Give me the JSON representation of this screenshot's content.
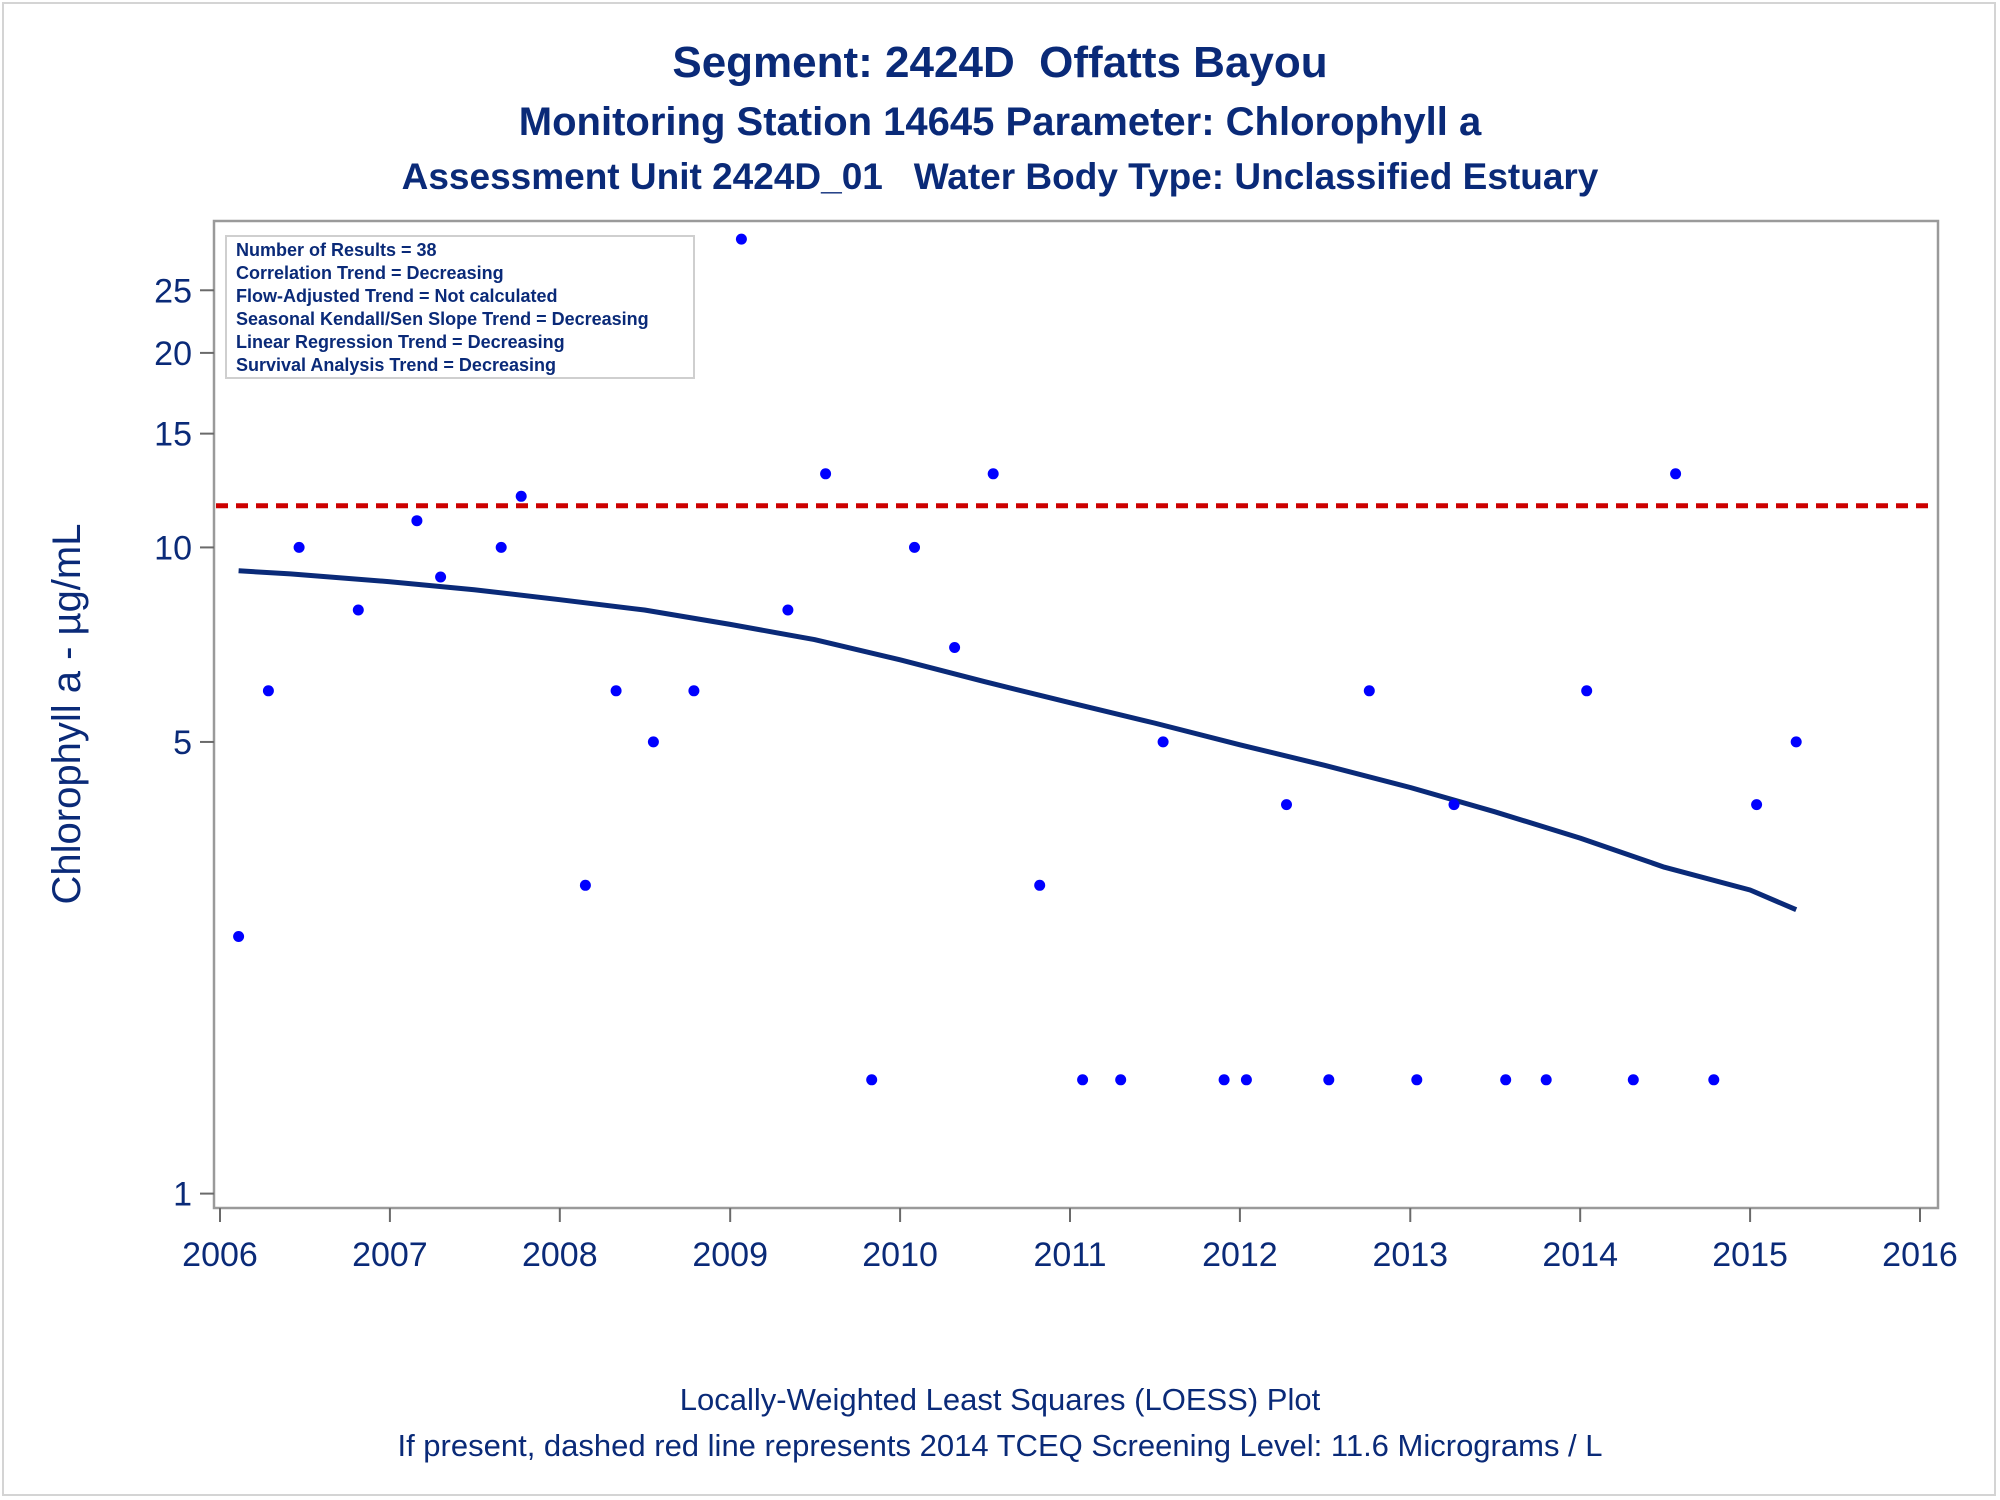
{
  "chart_data": {
    "type": "scatter",
    "title": "Segment: 2424D  Offatts Bayou",
    "subtitle": "Monitoring Station 14645 Parameter: Chlorophyll a",
    "subtitle2": "Assessment Unit 2424D_01   Water Body Type: Unclassified Estuary",
    "ylabel": "Chlorophyll a -  µg/mL",
    "xlabel": "",
    "y_scale": "log",
    "ylim": [
      0.95,
      32
    ],
    "xlim": [
      "2006-01-01",
      "2016-01-01"
    ],
    "x_ticks": [
      "2006",
      "2007",
      "2008",
      "2009",
      "2010",
      "2011",
      "2012",
      "2013",
      "2014",
      "2015",
      "2016"
    ],
    "y_ticks": [
      "1",
      "5",
      "10",
      "15",
      "20",
      "25"
    ],
    "legend_box": {
      "placement": "top-left",
      "lines": [
        "Number of Results = 38",
        "Correlation Trend = Decreasing",
        "Flow-Adjusted Trend = Not calculated",
        "Seasonal Kendall/Sen Slope Trend = Decreasing",
        "Linear Regression Trend = Decreasing",
        "Survival Analysis Trend = Decreasing"
      ]
    },
    "screening_level": {
      "value": 11.6,
      "style": "dashed",
      "color": "#cc0000"
    },
    "point_color": "#0000ff",
    "loess_color": "#0a2a78",
    "points": [
      {
        "x": "2006-02-10",
        "y": 2.5
      },
      {
        "x": "2006-04-15",
        "y": 6
      },
      {
        "x": "2006-06-20",
        "y": 10
      },
      {
        "x": "2006-10-25",
        "y": 8
      },
      {
        "x": "2007-02-28",
        "y": 11
      },
      {
        "x": "2007-04-20",
        "y": 9
      },
      {
        "x": "2007-08-28",
        "y": 10
      },
      {
        "x": "2007-10-10",
        "y": 12
      },
      {
        "x": "2008-02-25",
        "y": 3
      },
      {
        "x": "2008-05-01",
        "y": 6
      },
      {
        "x": "2008-07-20",
        "y": 5
      },
      {
        "x": "2008-10-15",
        "y": 6
      },
      {
        "x": "2009-01-25",
        "y": 30
      },
      {
        "x": "2009-05-05",
        "y": 8
      },
      {
        "x": "2009-07-25",
        "y": 13
      },
      {
        "x": "2009-11-01",
        "y": 1.5
      },
      {
        "x": "2010-02-01",
        "y": 10
      },
      {
        "x": "2010-04-28",
        "y": 7
      },
      {
        "x": "2010-07-20",
        "y": 13
      },
      {
        "x": "2010-10-28",
        "y": 3
      },
      {
        "x": "2011-01-28",
        "y": 1.5
      },
      {
        "x": "2011-04-20",
        "y": 1.5
      },
      {
        "x": "2011-07-20",
        "y": 5
      },
      {
        "x": "2011-11-28",
        "y": 1.5
      },
      {
        "x": "2012-01-15",
        "y": 1.5
      },
      {
        "x": "2012-04-10",
        "y": 4
      },
      {
        "x": "2012-07-10",
        "y": 1.5
      },
      {
        "x": "2012-10-05",
        "y": 6
      },
      {
        "x": "2013-01-15",
        "y": 1.5
      },
      {
        "x": "2013-04-05",
        "y": 4
      },
      {
        "x": "2013-07-25",
        "y": 1.5
      },
      {
        "x": "2013-10-20",
        "y": 1.5
      },
      {
        "x": "2014-01-15",
        "y": 6
      },
      {
        "x": "2014-04-25",
        "y": 1.5
      },
      {
        "x": "2014-07-25",
        "y": 13
      },
      {
        "x": "2014-10-15",
        "y": 1.5
      },
      {
        "x": "2015-01-15",
        "y": 4
      },
      {
        "x": "2015-04-10",
        "y": 5
      }
    ],
    "loess": [
      {
        "x": "2006-02-10",
        "y": 9.2
      },
      {
        "x": "2006-06-01",
        "y": 9.1
      },
      {
        "x": "2007-01-01",
        "y": 8.85
      },
      {
        "x": "2007-07-01",
        "y": 8.6
      },
      {
        "x": "2008-01-01",
        "y": 8.3
      },
      {
        "x": "2008-07-01",
        "y": 8.0
      },
      {
        "x": "2009-01-01",
        "y": 7.6
      },
      {
        "x": "2009-07-01",
        "y": 7.2
      },
      {
        "x": "2010-01-01",
        "y": 6.7
      },
      {
        "x": "2010-07-01",
        "y": 6.2
      },
      {
        "x": "2011-01-01",
        "y": 5.75
      },
      {
        "x": "2011-07-01",
        "y": 5.35
      },
      {
        "x": "2012-01-01",
        "y": 4.95
      },
      {
        "x": "2012-07-01",
        "y": 4.6
      },
      {
        "x": "2013-01-01",
        "y": 4.25
      },
      {
        "x": "2013-07-01",
        "y": 3.9
      },
      {
        "x": "2014-01-01",
        "y": 3.55
      },
      {
        "x": "2014-07-01",
        "y": 3.2
      },
      {
        "x": "2015-01-01",
        "y": 2.95
      },
      {
        "x": "2015-04-10",
        "y": 2.75
      }
    ],
    "footer": [
      "Locally-Weighted Least Squares (LOESS) Plot",
      "If present, dashed red line represents 2014 TCEQ Screening Level: 11.6 Micrograms / L"
    ]
  }
}
